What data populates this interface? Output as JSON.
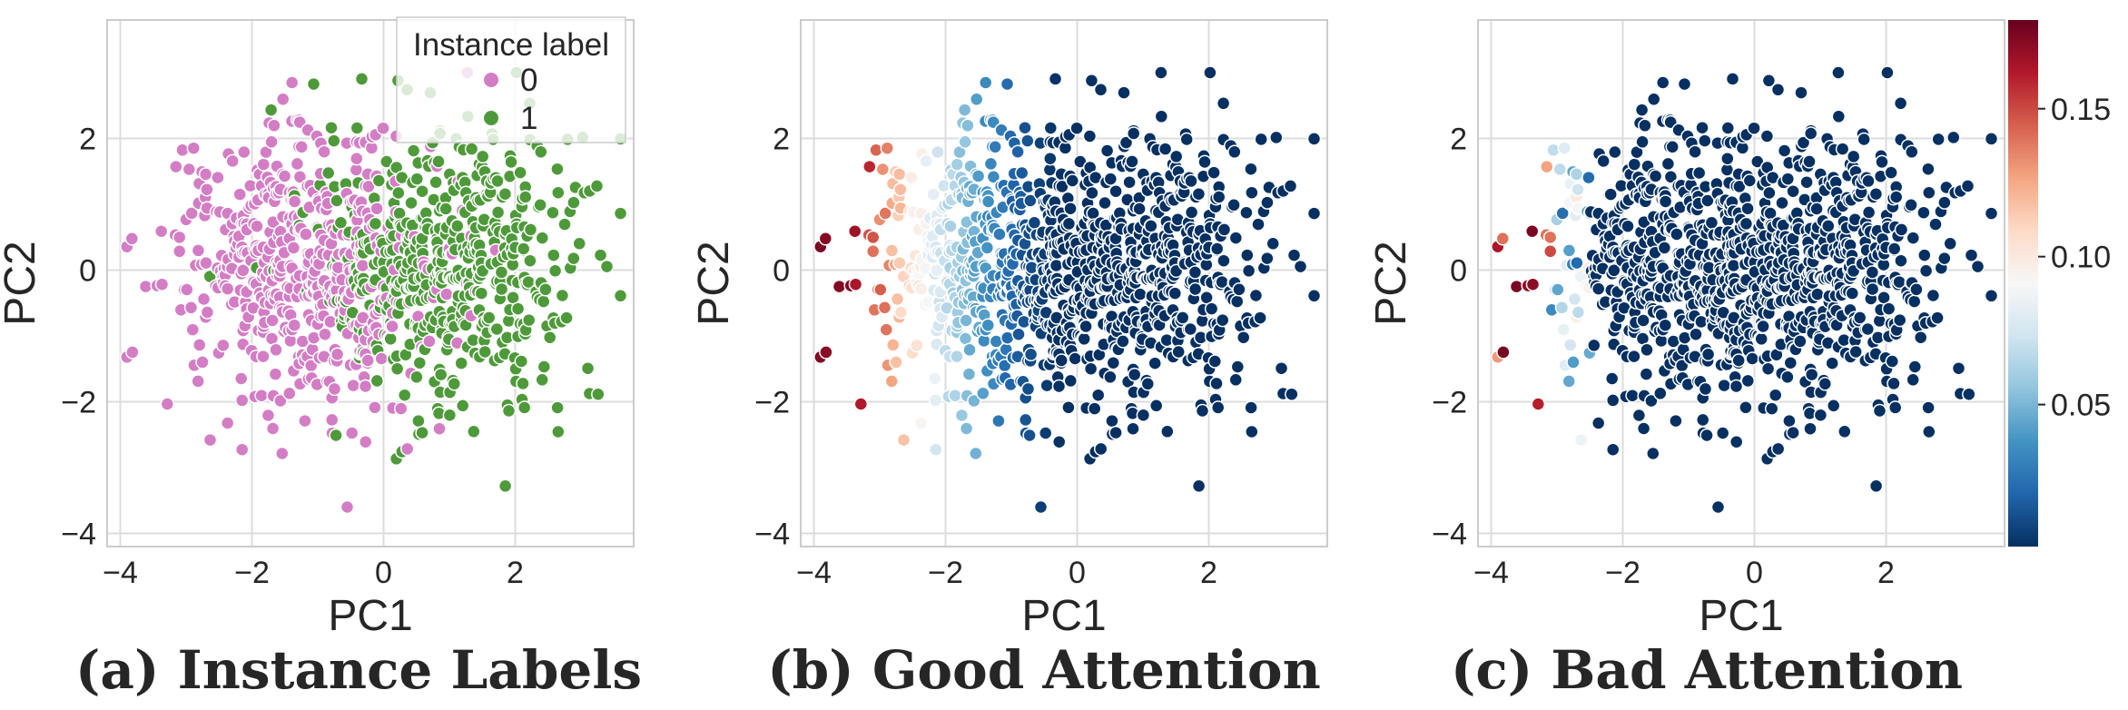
{
  "chart_data": [
    {
      "type": "scatter",
      "panel": "a",
      "caption": "(a) Instance Labels",
      "xlabel": "PC1",
      "ylabel": "PC2",
      "xlim": [
        -4.2,
        3.8
      ],
      "ylim": [
        -4.2,
        3.8
      ],
      "xticks": [
        -4,
        -2,
        0,
        2
      ],
      "yticks": [
        -4,
        -2,
        0,
        2
      ],
      "xtick_labels": [
        "−4",
        "−2",
        "0",
        "2"
      ],
      "ytick_labels": [
        "−4",
        "−2",
        "0",
        "2"
      ],
      "grid": true,
      "legend": {
        "title": "Instance label",
        "placement": "top-right",
        "entries": [
          {
            "label": "0",
            "color": "#d37dc5"
          },
          {
            "label": "1",
            "color": "#4e9a3a"
          }
        ]
      },
      "color_mapping": "instance label (0 = pink, 1 = green)",
      "approx_points": 1000
    },
    {
      "type": "scatter",
      "panel": "b",
      "caption": "(b) Good Attention",
      "xlabel": "PC1",
      "ylabel": "PC2",
      "xlim": [
        -4.2,
        3.8
      ],
      "ylim": [
        -4.2,
        3.8
      ],
      "xticks": [
        -4,
        -2,
        0,
        2
      ],
      "yticks": [
        -4,
        -2,
        0,
        2
      ],
      "xtick_labels": [
        "−4",
        "−2",
        "0",
        "2"
      ],
      "ytick_labels": [
        "−4",
        "−2",
        "0",
        "2"
      ],
      "grid": true,
      "color_mapping": "attention weight, high for low PC1, colormap RdBu_r",
      "approx_points": 1000
    },
    {
      "type": "scatter",
      "panel": "c",
      "caption": "(c) Bad Attention",
      "xlabel": "PC1",
      "ylabel": "PC2",
      "xlim": [
        -4.2,
        3.8
      ],
      "ylim": [
        -4.2,
        3.8
      ],
      "xticks": [
        -4,
        -2,
        0,
        2
      ],
      "yticks": [
        -4,
        -2,
        0,
        2
      ],
      "xtick_labels": [
        "−4",
        "−2",
        "0",
        "2"
      ],
      "ytick_labels": [
        "−4",
        "−2",
        "0",
        "2"
      ],
      "grid": true,
      "color_mapping": "attention weight, near zero except a few points at far left, colormap RdBu_r",
      "approx_points": 1000
    }
  ],
  "colorbar": {
    "colormap": "RdBu_r",
    "range": [
      0.002,
      0.18
    ],
    "ticks": [
      0.05,
      0.1,
      0.15
    ],
    "tick_labels": [
      "0.05",
      "0.10",
      "0.15"
    ],
    "colors": [
      "#053061",
      "#2166ac",
      "#4393c3",
      "#92c5de",
      "#d1e5f0",
      "#f7f7f7",
      "#fddbc7",
      "#f4a582",
      "#d6604d",
      "#b2182b",
      "#67001f"
    ]
  }
}
